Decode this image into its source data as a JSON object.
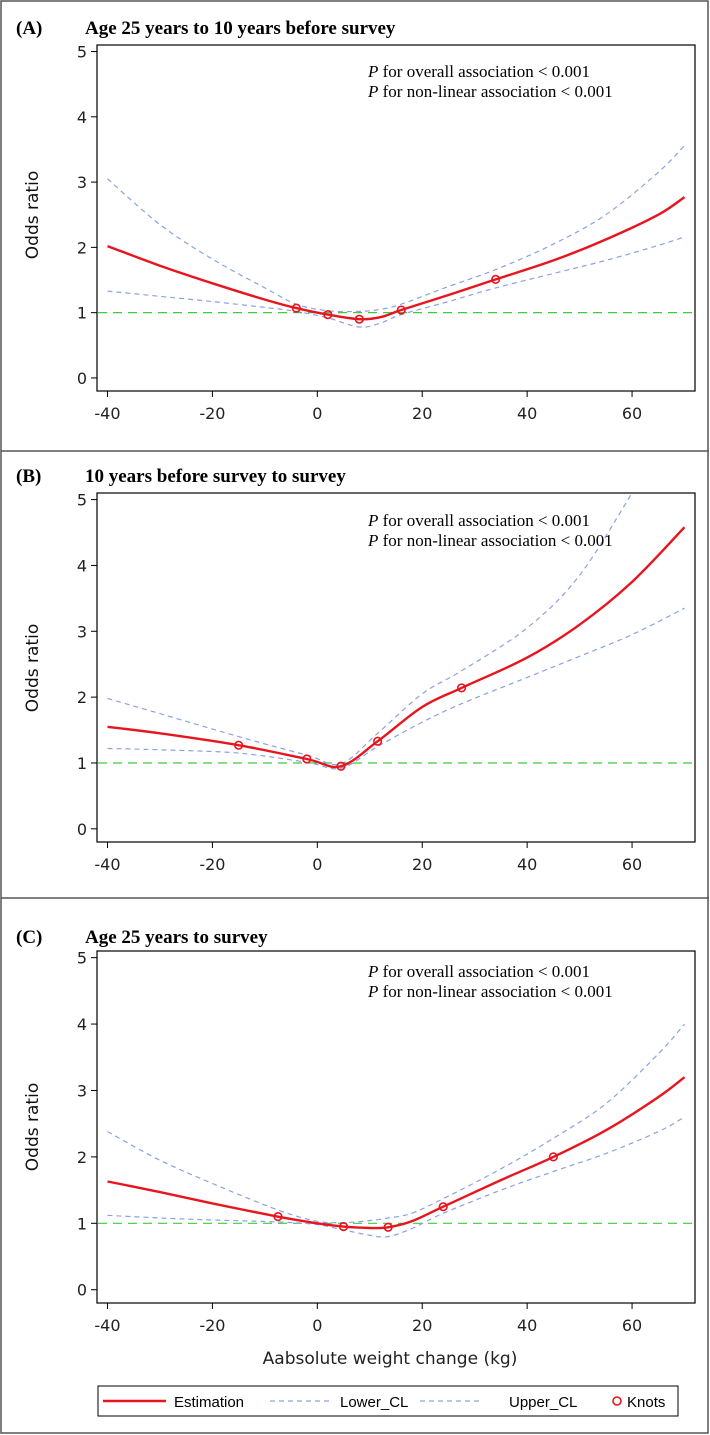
{
  "figure": {
    "xlabel": "Aabsolute weight change (kg)",
    "legend": {
      "estimation": "Estimation",
      "lower": "Lower_CL",
      "upper": "Upper_CL",
      "knots": "Knots"
    },
    "colors": {
      "estimation": "#e8141e",
      "ci": "#8aa2de",
      "reference": "#3ccc3c",
      "knots": "#e8141e"
    }
  },
  "chart_data": [
    {
      "type": "line",
      "panel_label": "(A)",
      "title": "Age 25 years to 10 years before survey",
      "xlabel": "Aabsolute weight change (kg)",
      "ylabel": "Odds ratio",
      "xlim": [
        -42,
        72
      ],
      "ylim": [
        -0.2,
        5.1
      ],
      "xticks": [
        -40,
        -20,
        0,
        20,
        40,
        60
      ],
      "yticks": [
        0,
        1,
        2,
        3,
        4,
        5
      ],
      "reference_line": 1,
      "annotations": [
        {
          "italic": "P",
          "text": " for overall association < 0.001"
        },
        {
          "italic": "P",
          "text": " for non-linear association < 0.001"
        }
      ],
      "series": [
        {
          "name": "Estimation",
          "x": [
            -40,
            -30,
            -20,
            -10,
            -4,
            2,
            8,
            12,
            16,
            25,
            34,
            45,
            55,
            65,
            70
          ],
          "y": [
            2.02,
            1.72,
            1.45,
            1.2,
            1.07,
            0.97,
            0.9,
            0.93,
            1.04,
            1.27,
            1.51,
            1.8,
            2.12,
            2.5,
            2.77
          ]
        },
        {
          "name": "Lower_CL",
          "x": [
            -40,
            -30,
            -20,
            -10,
            -4,
            2,
            8,
            12,
            16,
            25,
            34,
            45,
            55,
            65,
            70
          ],
          "y": [
            1.33,
            1.25,
            1.17,
            1.08,
            1.02,
            0.92,
            0.78,
            0.84,
            0.97,
            1.17,
            1.38,
            1.6,
            1.8,
            2.03,
            2.16
          ]
        },
        {
          "name": "Upper_CL",
          "x": [
            -40,
            -30,
            -20,
            -10,
            -4,
            2,
            8,
            12,
            16,
            25,
            34,
            45,
            55,
            65,
            70
          ],
          "y": [
            3.05,
            2.35,
            1.82,
            1.38,
            1.13,
            1.03,
            1.02,
            1.05,
            1.13,
            1.4,
            1.66,
            2.05,
            2.5,
            3.15,
            3.56
          ]
        }
      ],
      "knots": {
        "x": [
          -4,
          2,
          8,
          16,
          34
        ],
        "y": [
          1.07,
          0.97,
          0.9,
          1.04,
          1.51
        ]
      }
    },
    {
      "type": "line",
      "panel_label": "(B)",
      "title": "10 years before survey to survey",
      "xlabel": "Aabsolute weight change (kg)",
      "ylabel": "Odds ratio",
      "xlim": [
        -42,
        72
      ],
      "ylim": [
        -0.2,
        5.1
      ],
      "xticks": [
        -40,
        -20,
        0,
        20,
        40,
        60
      ],
      "yticks": [
        0,
        1,
        2,
        3,
        4,
        5
      ],
      "reference_line": 1,
      "annotations": [
        {
          "italic": "P",
          "text": " for overall association < 0.001"
        },
        {
          "italic": "P",
          "text": " for non-linear association < 0.001"
        }
      ],
      "series": [
        {
          "name": "Estimation",
          "x": [
            -40,
            -30,
            -15,
            -2,
            4.5,
            11.5,
            20,
            27.5,
            40,
            50,
            60,
            70
          ],
          "y": [
            1.55,
            1.45,
            1.27,
            1.06,
            0.95,
            1.33,
            1.85,
            2.14,
            2.6,
            3.1,
            3.75,
            4.58
          ]
        },
        {
          "name": "Lower_CL",
          "x": [
            -40,
            -30,
            -15,
            -2,
            4.5,
            11.5,
            20,
            27.5,
            40,
            50,
            60,
            70
          ],
          "y": [
            1.22,
            1.2,
            1.15,
            1.01,
            0.92,
            1.25,
            1.62,
            1.9,
            2.3,
            2.62,
            2.95,
            3.35
          ]
        },
        {
          "name": "Upper_CL",
          "x": [
            -40,
            -30,
            -15,
            -2,
            4.5,
            11.5,
            20,
            27.5,
            40,
            50,
            60
          ],
          "y": [
            1.98,
            1.75,
            1.4,
            1.12,
            0.99,
            1.45,
            2.05,
            2.4,
            3.05,
            3.85,
            5.1
          ]
        }
      ],
      "knots": {
        "x": [
          -15,
          -2,
          4.5,
          11.5,
          27.5
        ],
        "y": [
          1.27,
          1.06,
          0.95,
          1.33,
          2.14
        ]
      }
    },
    {
      "type": "line",
      "panel_label": "(C)",
      "title": "Age 25 years to survey",
      "xlabel": "Aabsolute weight change (kg)",
      "ylabel": "Odds ratio",
      "xlim": [
        -42,
        72
      ],
      "ylim": [
        -0.2,
        5.1
      ],
      "xticks": [
        -40,
        -20,
        0,
        20,
        40,
        60
      ],
      "yticks": [
        0,
        1,
        2,
        3,
        4,
        5
      ],
      "reference_line": 1,
      "annotations": [
        {
          "italic": "P",
          "text": " for overall association < 0.001"
        },
        {
          "italic": "P",
          "text": " for non-linear association < 0.001"
        }
      ],
      "series": [
        {
          "name": "Estimation",
          "x": [
            -40,
            -30,
            -20,
            -7.5,
            0,
            5,
            10,
            13.5,
            18,
            24,
            35,
            45,
            55,
            65,
            70
          ],
          "y": [
            1.63,
            1.47,
            1.3,
            1.1,
            1.0,
            0.95,
            0.93,
            0.94,
            1.03,
            1.25,
            1.65,
            2.0,
            2.4,
            2.9,
            3.2
          ]
        },
        {
          "name": "Lower_CL",
          "x": [
            -40,
            -30,
            -20,
            -7.5,
            0,
            5,
            10,
            13.5,
            18,
            24,
            35,
            45,
            55,
            65,
            70
          ],
          "y": [
            1.12,
            1.08,
            1.05,
            1.02,
            0.98,
            0.9,
            0.82,
            0.8,
            0.92,
            1.15,
            1.5,
            1.78,
            2.05,
            2.38,
            2.6
          ]
        },
        {
          "name": "Upper_CL",
          "x": [
            -40,
            -30,
            -20,
            -7.5,
            0,
            5,
            10,
            13.5,
            18,
            24,
            35,
            45,
            55,
            65,
            70
          ],
          "y": [
            2.38,
            1.95,
            1.6,
            1.2,
            1.03,
            1.01,
            1.04,
            1.08,
            1.15,
            1.37,
            1.82,
            2.28,
            2.8,
            3.55,
            4.0
          ]
        }
      ],
      "knots": {
        "x": [
          -7.5,
          5,
          13.5,
          24,
          45
        ],
        "y": [
          1.1,
          0.95,
          0.94,
          1.25,
          2.0
        ]
      }
    }
  ]
}
